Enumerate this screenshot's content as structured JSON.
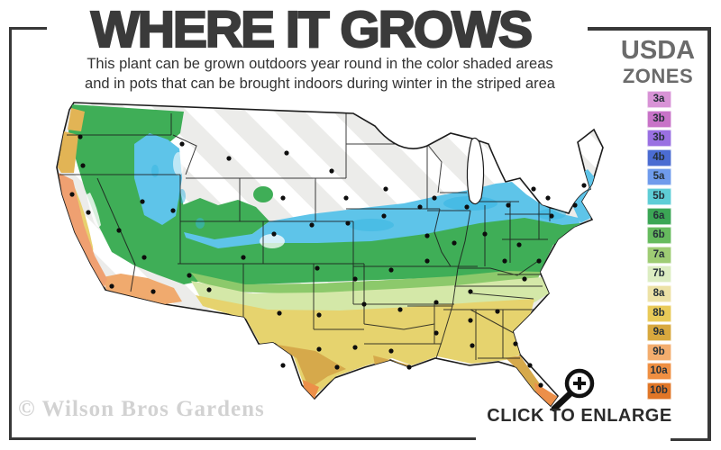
{
  "header": {
    "title": "WHERE IT GROWS",
    "subtitle_line1": "This plant can be grown outdoors year round in the color shaded areas",
    "subtitle_line2": "and in pots that can be brought indoors during winter in the striped area"
  },
  "legend": {
    "heading_line1": "USDA",
    "heading_line2": "ZONES",
    "items": [
      {
        "label": "3a",
        "color": "#d893d6"
      },
      {
        "label": "3b",
        "color": "#c873c8"
      },
      {
        "label": "3b",
        "color": "#9a70e2"
      },
      {
        "label": "4b",
        "color": "#4b6cd2"
      },
      {
        "label": "5a",
        "color": "#6f9bec"
      },
      {
        "label": "5b",
        "color": "#5ecdd6"
      },
      {
        "label": "6a",
        "color": "#3ba655"
      },
      {
        "label": "6b",
        "color": "#66bb5e"
      },
      {
        "label": "7a",
        "color": "#9ecc74"
      },
      {
        "label": "7b",
        "color": "#dcedc2"
      },
      {
        "label": "8a",
        "color": "#ede2a6"
      },
      {
        "label": "8b",
        "color": "#e9ca58"
      },
      {
        "label": "9a",
        "color": "#d8a83e"
      },
      {
        "label": "9b",
        "color": "#f3ad6e"
      },
      {
        "label": "10a",
        "color": "#ef8f42"
      },
      {
        "label": "10b",
        "color": "#e07627"
      }
    ]
  },
  "map": {
    "description": "USDA hardiness zone map of the continental United States",
    "watermark": "© Wilson Bros Gardens",
    "colors": {
      "striped_base": "#ececea",
      "stripe": "#ffffff",
      "outline": "#1c1c1c",
      "blue": "#5ec4e9",
      "blue_deep": "#35b5e2",
      "green": "#3fae57",
      "green_light": "#8cc96b",
      "green_pale": "#d4e8a8",
      "yellow": "#e6d36e",
      "gold": "#d6a94b",
      "sand": "#f0aa6e",
      "orange": "#ec8f49",
      "salmon": "#efa071",
      "coast_gold": "#e2b455",
      "valley_yellow": "#e8d06e",
      "lake": "#ffffff",
      "city_dot": "#0d0d0d"
    }
  },
  "footer": {
    "enlarge_label": "CLICK TO ENLARGE",
    "magnifier_icon": "magnifying-glass-plus"
  }
}
